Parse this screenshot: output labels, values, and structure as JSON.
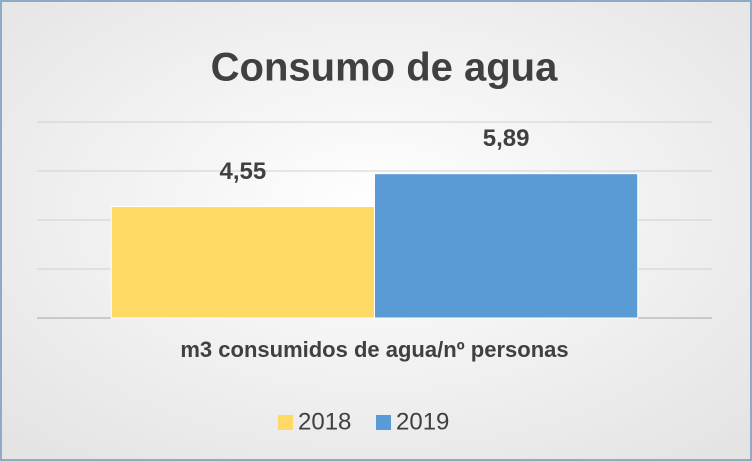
{
  "chart_data": {
    "type": "bar",
    "title": "Consumo de agua",
    "categories": [
      "m3 consumidos de agua/nº personas"
    ],
    "series": [
      {
        "name": "2018",
        "color": "#ffd966",
        "values": [
          4.55
        ],
        "value_labels": [
          "4,55"
        ]
      },
      {
        "name": "2019",
        "color": "#5b9bd5",
        "values": [
          5.89
        ],
        "value_labels": [
          "5,89"
        ]
      }
    ],
    "ylim": [
      0,
      8
    ],
    "yticks": [
      0,
      2,
      4,
      6,
      8
    ],
    "grid": true,
    "legend": "bottom"
  }
}
